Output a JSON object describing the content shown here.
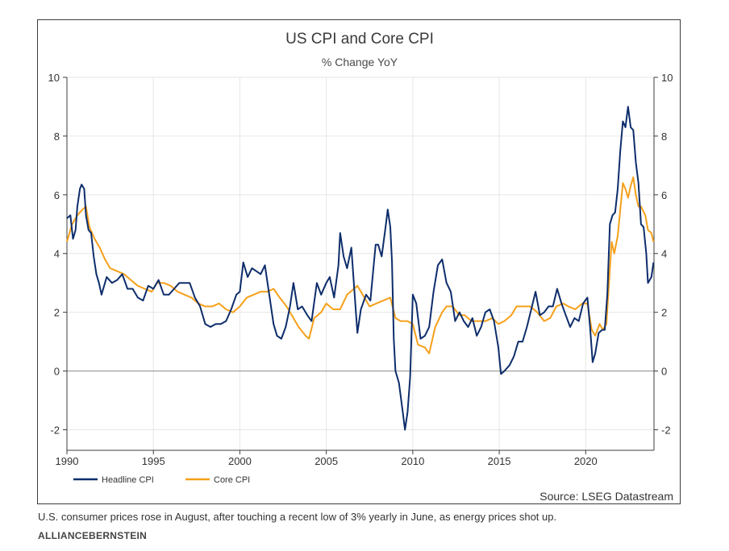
{
  "chart_data": {
    "type": "line",
    "title": "US CPI and Core CPI",
    "subtitle": "% Change YoY",
    "source": "Source: LSEG Datastream",
    "xlabel": "",
    "ylabel": "",
    "xlim": [
      1990.0,
      2023.95
    ],
    "ylim": [
      -2.7,
      10
    ],
    "x_ticks": [
      1990,
      1995,
      2000,
      2005,
      2010,
      2015,
      2020
    ],
    "y_ticks": [
      -2,
      0,
      2,
      4,
      6,
      8,
      10
    ],
    "y_tick_labels": [
      "-2",
      "0",
      "2",
      "4",
      "6",
      "8",
      "10"
    ],
    "x_tick_labels": [
      "1990",
      "1995",
      "2000",
      "2005",
      "2010",
      "2015",
      "2020"
    ],
    "y_axis_both_sides": true,
    "zero_line": true,
    "grid": true,
    "legend_position": "bottom-left",
    "colors": {
      "headline": "#0d2d6b",
      "core": "#f5a01a",
      "grid": "#e6e6e6",
      "zero_line": "#8c8c8c",
      "axis": "#3c3c3c"
    },
    "series": [
      {
        "name": "Headline CPI",
        "color": "#0d2d6b",
        "points": [
          [
            1990.0,
            5.2
          ],
          [
            1990.2,
            5.3
          ],
          [
            1990.35,
            4.5
          ],
          [
            1990.5,
            4.8
          ],
          [
            1990.6,
            5.6
          ],
          [
            1990.75,
            6.2
          ],
          [
            1990.85,
            6.35
          ],
          [
            1991.0,
            6.2
          ],
          [
            1991.1,
            5.3
          ],
          [
            1991.25,
            4.8
          ],
          [
            1991.4,
            4.7
          ],
          [
            1991.55,
            3.9
          ],
          [
            1991.7,
            3.3
          ],
          [
            1991.85,
            3.0
          ],
          [
            1992.0,
            2.6
          ],
          [
            1992.3,
            3.2
          ],
          [
            1992.6,
            3.0
          ],
          [
            1992.9,
            3.1
          ],
          [
            1993.2,
            3.3
          ],
          [
            1993.5,
            2.8
          ],
          [
            1993.8,
            2.8
          ],
          [
            1994.1,
            2.5
          ],
          [
            1994.4,
            2.4
          ],
          [
            1994.7,
            2.9
          ],
          [
            1995.0,
            2.8
          ],
          [
            1995.3,
            3.1
          ],
          [
            1995.6,
            2.6
          ],
          [
            1995.9,
            2.6
          ],
          [
            1996.2,
            2.8
          ],
          [
            1996.5,
            3.0
          ],
          [
            1996.8,
            3.0
          ],
          [
            1997.1,
            3.0
          ],
          [
            1997.4,
            2.5
          ],
          [
            1997.7,
            2.2
          ],
          [
            1998.0,
            1.6
          ],
          [
            1998.3,
            1.5
          ],
          [
            1998.6,
            1.6
          ],
          [
            1998.9,
            1.6
          ],
          [
            1999.2,
            1.7
          ],
          [
            1999.5,
            2.1
          ],
          [
            1999.8,
            2.6
          ],
          [
            2000.0,
            2.7
          ],
          [
            2000.2,
            3.7
          ],
          [
            2000.45,
            3.2
          ],
          [
            2000.7,
            3.5
          ],
          [
            2000.95,
            3.4
          ],
          [
            2001.2,
            3.3
          ],
          [
            2001.45,
            3.6
          ],
          [
            2001.7,
            2.6
          ],
          [
            2001.95,
            1.6
          ],
          [
            2002.15,
            1.2
          ],
          [
            2002.4,
            1.1
          ],
          [
            2002.65,
            1.5
          ],
          [
            2002.9,
            2.2
          ],
          [
            2003.1,
            3.0
          ],
          [
            2003.35,
            2.1
          ],
          [
            2003.6,
            2.2
          ],
          [
            2003.9,
            1.9
          ],
          [
            2004.15,
            1.7
          ],
          [
            2004.45,
            3.0
          ],
          [
            2004.7,
            2.6
          ],
          [
            2005.0,
            3.0
          ],
          [
            2005.2,
            3.2
          ],
          [
            2005.45,
            2.5
          ],
          [
            2005.7,
            3.6
          ],
          [
            2005.8,
            4.7
          ],
          [
            2006.0,
            3.9
          ],
          [
            2006.2,
            3.5
          ],
          [
            2006.45,
            4.2
          ],
          [
            2006.7,
            2.1
          ],
          [
            2006.8,
            1.3
          ],
          [
            2007.0,
            2.1
          ],
          [
            2007.3,
            2.6
          ],
          [
            2007.55,
            2.4
          ],
          [
            2007.85,
            4.3
          ],
          [
            2008.0,
            4.3
          ],
          [
            2008.2,
            3.9
          ],
          [
            2008.45,
            5.0
          ],
          [
            2008.55,
            5.5
          ],
          [
            2008.7,
            4.9
          ],
          [
            2008.8,
            3.7
          ],
          [
            2008.9,
            1.1
          ],
          [
            2009.0,
            0.0
          ],
          [
            2009.2,
            -0.4
          ],
          [
            2009.4,
            -1.3
          ],
          [
            2009.55,
            -2.0
          ],
          [
            2009.7,
            -1.4
          ],
          [
            2009.85,
            -0.2
          ],
          [
            2010.0,
            2.6
          ],
          [
            2010.2,
            2.3
          ],
          [
            2010.45,
            1.1
          ],
          [
            2010.7,
            1.2
          ],
          [
            2010.95,
            1.5
          ],
          [
            2011.2,
            2.7
          ],
          [
            2011.45,
            3.6
          ],
          [
            2011.7,
            3.8
          ],
          [
            2011.95,
            3.0
          ],
          [
            2012.2,
            2.7
          ],
          [
            2012.45,
            1.7
          ],
          [
            2012.7,
            2.0
          ],
          [
            2012.95,
            1.7
          ],
          [
            2013.2,
            1.5
          ],
          [
            2013.45,
            1.8
          ],
          [
            2013.7,
            1.2
          ],
          [
            2013.95,
            1.5
          ],
          [
            2014.2,
            2.0
          ],
          [
            2014.45,
            2.1
          ],
          [
            2014.7,
            1.7
          ],
          [
            2014.95,
            0.8
          ],
          [
            2015.1,
            -0.1
          ],
          [
            2015.3,
            0.0
          ],
          [
            2015.6,
            0.2
          ],
          [
            2015.85,
            0.5
          ],
          [
            2016.1,
            1.0
          ],
          [
            2016.35,
            1.0
          ],
          [
            2016.6,
            1.5
          ],
          [
            2016.85,
            2.1
          ],
          [
            2017.1,
            2.7
          ],
          [
            2017.35,
            1.9
          ],
          [
            2017.6,
            2.0
          ],
          [
            2017.85,
            2.2
          ],
          [
            2018.1,
            2.2
          ],
          [
            2018.35,
            2.8
          ],
          [
            2018.6,
            2.3
          ],
          [
            2018.85,
            1.9
          ],
          [
            2019.1,
            1.5
          ],
          [
            2019.35,
            1.8
          ],
          [
            2019.6,
            1.7
          ],
          [
            2019.85,
            2.3
          ],
          [
            2020.1,
            2.5
          ],
          [
            2020.25,
            1.5
          ],
          [
            2020.4,
            0.3
          ],
          [
            2020.55,
            0.6
          ],
          [
            2020.75,
            1.3
          ],
          [
            2020.95,
            1.4
          ],
          [
            2021.1,
            1.4
          ],
          [
            2021.25,
            2.6
          ],
          [
            2021.4,
            5.0
          ],
          [
            2021.55,
            5.3
          ],
          [
            2021.7,
            5.4
          ],
          [
            2021.85,
            6.2
          ],
          [
            2022.0,
            7.5
          ],
          [
            2022.15,
            8.5
          ],
          [
            2022.3,
            8.3
          ],
          [
            2022.45,
            9.0
          ],
          [
            2022.6,
            8.3
          ],
          [
            2022.75,
            8.2
          ],
          [
            2022.9,
            7.1
          ],
          [
            2023.05,
            6.4
          ],
          [
            2023.2,
            5.0
          ],
          [
            2023.35,
            4.9
          ],
          [
            2023.5,
            4.0
          ],
          [
            2023.6,
            3.0
          ],
          [
            2023.8,
            3.2
          ],
          [
            2023.92,
            3.7
          ]
        ]
      },
      {
        "name": "Core CPI",
        "color": "#f5a01a",
        "points": [
          [
            1990.0,
            4.4
          ],
          [
            1990.3,
            5.0
          ],
          [
            1990.6,
            5.3
          ],
          [
            1990.9,
            5.5
          ],
          [
            1991.1,
            5.6
          ],
          [
            1991.3,
            4.9
          ],
          [
            1991.6,
            4.5
          ],
          [
            1991.9,
            4.2
          ],
          [
            1992.2,
            3.8
          ],
          [
            1992.5,
            3.5
          ],
          [
            1992.9,
            3.4
          ],
          [
            1993.3,
            3.3
          ],
          [
            1993.7,
            3.1
          ],
          [
            1994.1,
            2.9
          ],
          [
            1994.5,
            2.8
          ],
          [
            1994.9,
            2.7
          ],
          [
            1995.2,
            3.0
          ],
          [
            1995.6,
            3.0
          ],
          [
            1996.0,
            2.9
          ],
          [
            1996.4,
            2.7
          ],
          [
            1996.8,
            2.6
          ],
          [
            1997.2,
            2.5
          ],
          [
            1997.6,
            2.3
          ],
          [
            1998.0,
            2.2
          ],
          [
            1998.4,
            2.2
          ],
          [
            1998.8,
            2.3
          ],
          [
            1999.2,
            2.1
          ],
          [
            1999.6,
            2.0
          ],
          [
            2000.0,
            2.2
          ],
          [
            2000.4,
            2.5
          ],
          [
            2000.8,
            2.6
          ],
          [
            2001.2,
            2.7
          ],
          [
            2001.6,
            2.7
          ],
          [
            2001.95,
            2.8
          ],
          [
            2002.3,
            2.5
          ],
          [
            2002.7,
            2.2
          ],
          [
            2003.0,
            1.9
          ],
          [
            2003.4,
            1.5
          ],
          [
            2003.8,
            1.2
          ],
          [
            2004.0,
            1.1
          ],
          [
            2004.3,
            1.8
          ],
          [
            2004.7,
            2.0
          ],
          [
            2005.0,
            2.3
          ],
          [
            2005.4,
            2.1
          ],
          [
            2005.8,
            2.1
          ],
          [
            2006.2,
            2.6
          ],
          [
            2006.6,
            2.8
          ],
          [
            2006.8,
            2.9
          ],
          [
            2007.1,
            2.6
          ],
          [
            2007.5,
            2.2
          ],
          [
            2007.9,
            2.3
          ],
          [
            2008.3,
            2.4
          ],
          [
            2008.7,
            2.5
          ],
          [
            2009.0,
            1.8
          ],
          [
            2009.3,
            1.7
          ],
          [
            2009.7,
            1.7
          ],
          [
            2010.0,
            1.6
          ],
          [
            2010.3,
            0.9
          ],
          [
            2010.7,
            0.8
          ],
          [
            2010.95,
            0.6
          ],
          [
            2011.3,
            1.5
          ],
          [
            2011.7,
            2.0
          ],
          [
            2011.95,
            2.2
          ],
          [
            2012.3,
            2.2
          ],
          [
            2012.7,
            1.9
          ],
          [
            2013.0,
            1.9
          ],
          [
            2013.4,
            1.7
          ],
          [
            2013.8,
            1.7
          ],
          [
            2014.2,
            1.7
          ],
          [
            2014.6,
            1.8
          ],
          [
            2014.95,
            1.6
          ],
          [
            2015.3,
            1.7
          ],
          [
            2015.7,
            1.9
          ],
          [
            2016.0,
            2.2
          ],
          [
            2016.4,
            2.2
          ],
          [
            2016.8,
            2.2
          ],
          [
            2017.2,
            2.0
          ],
          [
            2017.6,
            1.7
          ],
          [
            2017.95,
            1.8
          ],
          [
            2018.3,
            2.2
          ],
          [
            2018.7,
            2.3
          ],
          [
            2019.0,
            2.2
          ],
          [
            2019.4,
            2.1
          ],
          [
            2019.8,
            2.3
          ],
          [
            2020.1,
            2.3
          ],
          [
            2020.35,
            1.4
          ],
          [
            2020.55,
            1.2
          ],
          [
            2020.8,
            1.6
          ],
          [
            2021.0,
            1.4
          ],
          [
            2021.2,
            1.6
          ],
          [
            2021.35,
            3.0
          ],
          [
            2021.5,
            4.4
          ],
          [
            2021.65,
            4.0
          ],
          [
            2021.85,
            4.6
          ],
          [
            2022.0,
            5.5
          ],
          [
            2022.15,
            6.4
          ],
          [
            2022.3,
            6.2
          ],
          [
            2022.45,
            5.9
          ],
          [
            2022.6,
            6.3
          ],
          [
            2022.75,
            6.6
          ],
          [
            2022.9,
            6.0
          ],
          [
            2023.05,
            5.6
          ],
          [
            2023.2,
            5.6
          ],
          [
            2023.45,
            5.3
          ],
          [
            2023.6,
            4.8
          ],
          [
            2023.8,
            4.7
          ],
          [
            2023.92,
            4.4
          ]
        ]
      }
    ]
  },
  "caption": "U.S. consumer prices rose in August, after touching a recent low of 3% yearly in June, as energy prices shot up.",
  "credit": "ALLIANCEBERNSTEIN"
}
